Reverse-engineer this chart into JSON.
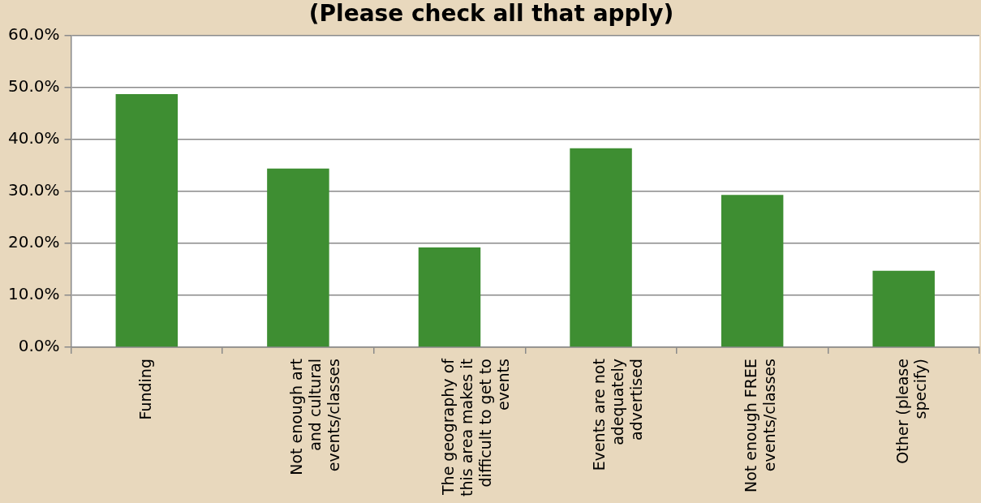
{
  "chart_data": {
    "type": "bar",
    "title": "(Please check all that apply)",
    "categories": [
      "Funding",
      "Not enough art and cultural events/classes",
      "The geography of this area makes it difficult to get to events",
      "Events are not adequately advertised",
      "Not enough FREE events/classes",
      "Other (please specify)"
    ],
    "values": [
      48.7,
      34.4,
      19.2,
      38.3,
      29.3,
      14.7
    ],
    "color": "#3e8e32",
    "ylim": [
      0,
      60
    ],
    "yticks": [
      {
        "value": 0,
        "label": "0.0%"
      },
      {
        "value": 10,
        "label": "10.0%"
      },
      {
        "value": 20,
        "label": "20.0%"
      },
      {
        "value": 30,
        "label": "30.0%"
      },
      {
        "value": 40,
        "label": "40.0%"
      },
      {
        "value": 50,
        "label": "50.0%"
      },
      {
        "value": 60,
        "label": "60.0%"
      }
    ],
    "grid": "y",
    "legend": false
  }
}
